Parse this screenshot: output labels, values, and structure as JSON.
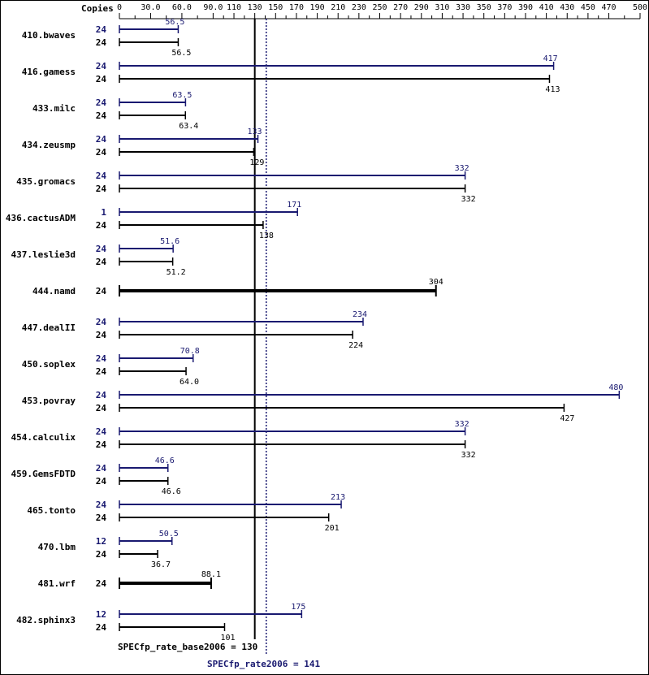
{
  "chart_data": {
    "type": "bar",
    "orientation": "horizontal",
    "header_label": "Copies",
    "xlim": [
      0,
      500
    ],
    "x_ticks": [
      "0",
      "30.0",
      "60.0",
      "90.0",
      "110",
      "130",
      "150",
      "170",
      "190",
      "210",
      "230",
      "250",
      "270",
      "290",
      "310",
      "330",
      "350",
      "370",
      "390",
      "410",
      "430",
      "450",
      "470",
      "500"
    ],
    "x_tick_values": [
      0,
      30,
      60,
      90,
      110,
      130,
      150,
      170,
      190,
      210,
      230,
      250,
      270,
      290,
      310,
      330,
      350,
      370,
      390,
      410,
      430,
      450,
      470,
      500
    ],
    "colors": {
      "peak": "#191970",
      "base": "#000000"
    },
    "benchmarks": [
      {
        "name": "410.bwaves",
        "peak_copies": "24",
        "peak": 56.5,
        "peak_label": "56.5",
        "base_copies": "24",
        "base": 56.5,
        "base_label": "56.5"
      },
      {
        "name": "416.gamess",
        "peak_copies": "24",
        "peak": 417,
        "peak_label": "417",
        "base_copies": "24",
        "base": 413,
        "base_label": "413"
      },
      {
        "name": "433.milc",
        "peak_copies": "24",
        "peak": 63.5,
        "peak_label": "63.5",
        "base_copies": "24",
        "base": 63.4,
        "base_label": "63.4"
      },
      {
        "name": "434.zeusmp",
        "peak_copies": "24",
        "peak": 133,
        "peak_label": "133",
        "base_copies": "24",
        "base": 129,
        "base_label": "129"
      },
      {
        "name": "435.gromacs",
        "peak_copies": "24",
        "peak": 332,
        "peak_label": "332",
        "base_copies": "24",
        "base": 332,
        "base_label": "332"
      },
      {
        "name": "436.cactusADM",
        "peak_copies": "1",
        "peak": 171,
        "peak_label": "171",
        "base_copies": "24",
        "base": 138,
        "base_label": "138"
      },
      {
        "name": "437.leslie3d",
        "peak_copies": "24",
        "peak": 51.6,
        "peak_label": "51.6",
        "base_copies": "24",
        "base": 51.2,
        "base_label": "51.2"
      },
      {
        "name": "444.namd",
        "peak_copies": null,
        "peak": null,
        "peak_label": null,
        "base_copies": "24",
        "base": 304,
        "base_label": "304"
      },
      {
        "name": "447.dealII",
        "peak_copies": "24",
        "peak": 234,
        "peak_label": "234",
        "base_copies": "24",
        "base": 224,
        "base_label": "224"
      },
      {
        "name": "450.soplex",
        "peak_copies": "24",
        "peak": 70.8,
        "peak_label": "70.8",
        "base_copies": "24",
        "base": 64.0,
        "base_label": "64.0"
      },
      {
        "name": "453.povray",
        "peak_copies": "24",
        "peak": 480,
        "peak_label": "480",
        "base_copies": "24",
        "base": 427,
        "base_label": "427"
      },
      {
        "name": "454.calculix",
        "peak_copies": "24",
        "peak": 332,
        "peak_label": "332",
        "base_copies": "24",
        "base": 332,
        "base_label": "332"
      },
      {
        "name": "459.GemsFDTD",
        "peak_copies": "24",
        "peak": 46.6,
        "peak_label": "46.6",
        "base_copies": "24",
        "base": 46.6,
        "base_label": "46.6"
      },
      {
        "name": "465.tonto",
        "peak_copies": "24",
        "peak": 213,
        "peak_label": "213",
        "base_copies": "24",
        "base": 201,
        "base_label": "201"
      },
      {
        "name": "470.lbm",
        "peak_copies": "12",
        "peak": 50.5,
        "peak_label": "50.5",
        "base_copies": "24",
        "base": 36.7,
        "base_label": "36.7"
      },
      {
        "name": "481.wrf",
        "peak_copies": null,
        "peak": null,
        "peak_label": null,
        "base_copies": "24",
        "base": 88.1,
        "base_label": "88.1"
      },
      {
        "name": "482.sphinx3",
        "peak_copies": "12",
        "peak": 175,
        "peak_label": "175",
        "base_copies": "24",
        "base": 101,
        "base_label": "101"
      }
    ],
    "base_summary": {
      "label": "SPECfp_rate_base2006 = 130",
      "value": 130
    },
    "peak_summary": {
      "label": "SPECfp_rate2006 = 141",
      "value": 141
    }
  }
}
